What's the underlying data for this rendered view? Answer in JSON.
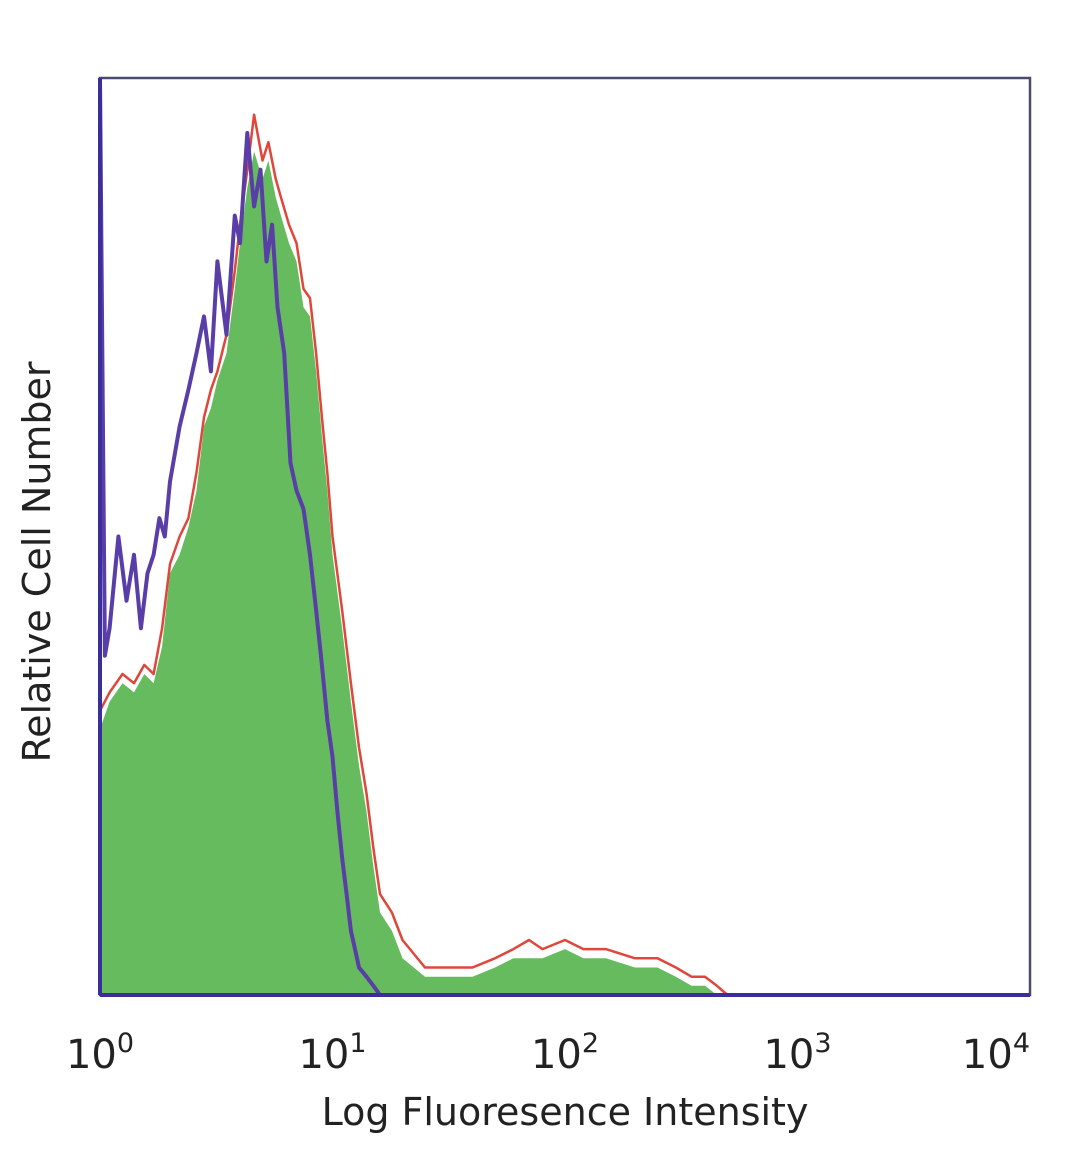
{
  "chart_data": {
    "type": "area",
    "title": "",
    "xlabel": "Log Fluoresence Intensity",
    "ylabel": "Relative Cell Number",
    "x_scale": "log",
    "xlim": [
      1,
      10000
    ],
    "ylim": [
      0,
      100
    ],
    "grid": false,
    "x_ticks": [
      {
        "base": "10",
        "exp": "0",
        "value": 1
      },
      {
        "base": "10",
        "exp": "1",
        "value": 10
      },
      {
        "base": "10",
        "exp": "2",
        "value": 100
      },
      {
        "base": "10",
        "exp": "3",
        "value": 1000
      },
      {
        "base": "10",
        "exp": "4",
        "value": 10000
      }
    ],
    "series": [
      {
        "color": "#66bb5e",
        "style": "filled",
        "x": [
          1,
          1.1,
          1.25,
          1.4,
          1.55,
          1.7,
          1.85,
          2.0,
          2.2,
          2.4,
          2.6,
          2.8,
          3.0,
          3.2,
          3.5,
          3.8,
          4.0,
          4.3,
          4.6,
          5.0,
          5.3,
          5.7,
          6.0,
          6.5,
          7.0,
          7.5,
          8.0,
          8.5,
          9.0,
          9.5,
          10,
          11,
          12,
          13,
          14,
          15,
          16,
          18,
          20,
          25,
          30,
          40,
          50,
          60,
          70,
          80,
          100,
          120,
          150,
          200,
          250,
          300,
          350,
          400,
          450
        ],
        "values": [
          29,
          32,
          34,
          33,
          35,
          34,
          38,
          46,
          48,
          51,
          55,
          62,
          64,
          67,
          70,
          77,
          82,
          88,
          92,
          89,
          91,
          87,
          85,
          82,
          80,
          75,
          74,
          68,
          61,
          55,
          48,
          40,
          32,
          25,
          20,
          14,
          9,
          7,
          4,
          2,
          2,
          2,
          3,
          4,
          4,
          4,
          5,
          4,
          4,
          3,
          3,
          2,
          1,
          1,
          0
        ]
      },
      {
        "color": "#e0463a",
        "style": "line",
        "x": [
          1,
          1.1,
          1.25,
          1.4,
          1.55,
          1.7,
          1.85,
          2.0,
          2.2,
          2.4,
          2.6,
          2.8,
          3.0,
          3.2,
          3.5,
          3.8,
          4.0,
          4.3,
          4.6,
          5.0,
          5.3,
          5.7,
          6.0,
          6.5,
          7.0,
          7.5,
          8.0,
          8.5,
          9.0,
          9.5,
          10,
          11,
          12,
          13,
          14,
          15,
          16,
          18,
          20,
          25,
          30,
          40,
          50,
          60,
          70,
          80,
          100,
          120,
          150,
          200,
          250,
          300,
          350,
          400,
          450,
          500
        ],
        "values": [
          31,
          33,
          35,
          34,
          36,
          35,
          40,
          47,
          50,
          52,
          57,
          63,
          66,
          68,
          72,
          79,
          84,
          90,
          96,
          91,
          93,
          89,
          87,
          84,
          82,
          77,
          76,
          70,
          63,
          57,
          50,
          42,
          34,
          27,
          22,
          16,
          11,
          9,
          6,
          3,
          3,
          3,
          4,
          5,
          6,
          5,
          6,
          5,
          5,
          4,
          4,
          3,
          2,
          2,
          1,
          0
        ]
      },
      {
        "color": "#5a3ea8",
        "style": "line",
        "x": [
          1,
          1.05,
          1.1,
          1.2,
          1.3,
          1.4,
          1.5,
          1.6,
          1.7,
          1.8,
          1.9,
          2.0,
          2.2,
          2.4,
          2.6,
          2.8,
          3.0,
          3.2,
          3.5,
          3.8,
          4.0,
          4.3,
          4.6,
          4.9,
          5.2,
          5.5,
          5.8,
          6.2,
          6.6,
          7.0,
          7.5,
          8.0,
          8.5,
          9.0,
          9.5,
          10,
          10.5,
          11,
          11.5,
          12,
          12.5,
          13,
          14,
          15,
          16
        ],
        "values": [
          100,
          37,
          40,
          50,
          43,
          48,
          40,
          46,
          48,
          52,
          50,
          56,
          62,
          66,
          70,
          74,
          68,
          80,
          72,
          85,
          82,
          94,
          86,
          90,
          80,
          84,
          75,
          70,
          58,
          55,
          53,
          48,
          42,
          36,
          30,
          26,
          20,
          15,
          11,
          7,
          5,
          3,
          2,
          1,
          0
        ]
      }
    ]
  }
}
